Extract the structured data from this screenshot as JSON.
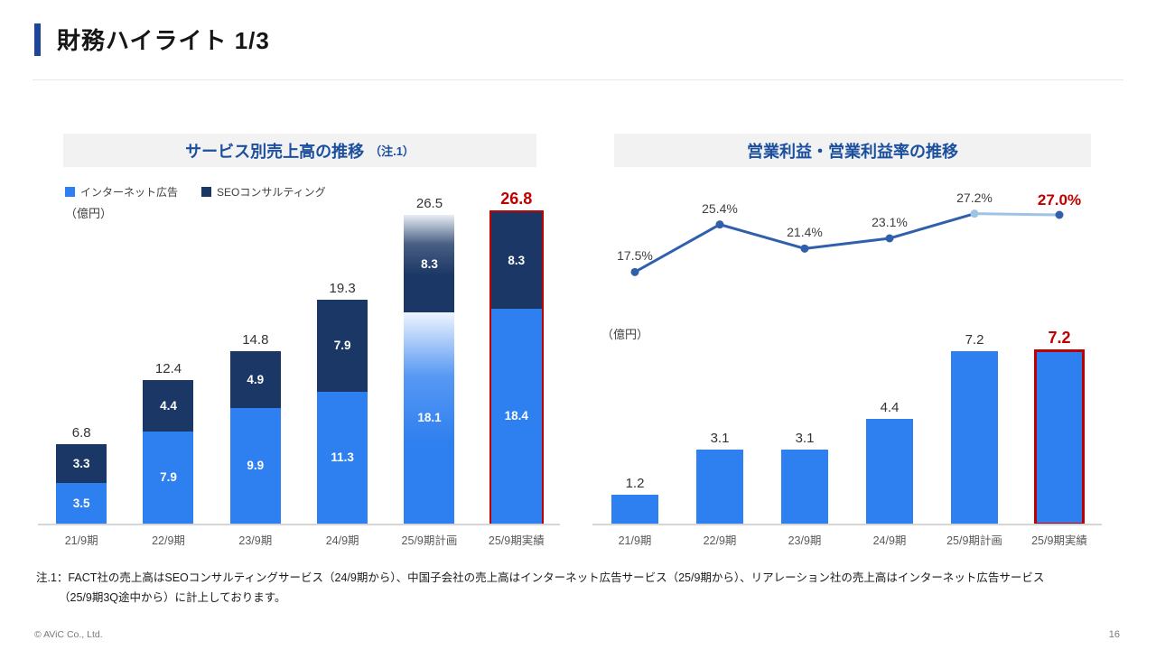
{
  "page": {
    "title": "財務ハイライト 1/3",
    "note_line1": "注.1：FACT社の売上高はSEOコンサルティングサービス（24/9期から）、中国子会社の売上高はインターネット広告サービス（25/9期から）、リアレーション社の売上高はインターネット広告サービス",
    "note_line2": "（25/9期3Q途中から）に計上しております。",
    "footer_left": "© AViC Co., Ltd.",
    "page_number": "16"
  },
  "colors": {
    "accent_blue": "#1e4598",
    "title_blue": "#1b4f9e",
    "internet_ads_blue": "#2e7ff0",
    "seo_navy": "#1b3765",
    "highlight_red": "#c00000",
    "line_blue": "#3060ac",
    "line_light_blue": "#9dc3e6",
    "label_gray": "#404040",
    "axis_gray": "#d6d6d6"
  },
  "chart_data": [
    {
      "type": "bar",
      "stacked": true,
      "title_main": "サービス別売上高の推移",
      "title_note": "（注.1）",
      "unit_label": "（億円）",
      "legend_position": "top-left",
      "grid": false,
      "categories": [
        "21/9期",
        "22/9期",
        "23/9期",
        "24/9期",
        "25/9期計画",
        "25/9期実績"
      ],
      "series": [
        {
          "name": "インターネット広告",
          "values": [
            3.5,
            7.9,
            9.9,
            11.3,
            18.1,
            18.4
          ]
        },
        {
          "name": "SEOコンサルティング",
          "values": [
            3.3,
            4.4,
            4.9,
            7.9,
            8.3,
            8.3
          ]
        }
      ],
      "totals": [
        6.8,
        12.4,
        14.8,
        19.3,
        26.5,
        26.8
      ],
      "plan_index": 4,
      "highlight_index": 5,
      "ylim": [
        0,
        27.2
      ]
    },
    {
      "type": "bar+line",
      "title_main": "営業利益・営業利益率の推移",
      "title_note": "",
      "unit_label": "（億円）",
      "grid": false,
      "categories": [
        "21/9期",
        "22/9期",
        "23/9期",
        "24/9期",
        "25/9期計画",
        "25/9期実績"
      ],
      "bar_series": {
        "name": "営業利益",
        "values": [
          1.2,
          3.1,
          3.1,
          4.4,
          7.2,
          7.2
        ]
      },
      "line_series": {
        "name": "営業利益率",
        "values": [
          17.5,
          25.4,
          21.4,
          23.1,
          27.2,
          27.0
        ],
        "labels": [
          "17.5%",
          "25.4%",
          "21.4%",
          "23.1%",
          "27.2%",
          "27.0%"
        ]
      },
      "highlight_index": 5,
      "ylim_bar": [
        0,
        7.4
      ],
      "ylim_line": [
        13.5,
        30
      ]
    }
  ]
}
